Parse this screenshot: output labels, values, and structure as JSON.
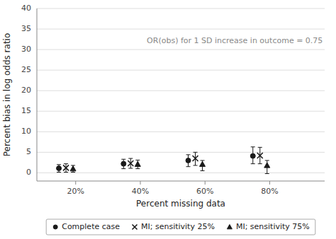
{
  "chart_data": {
    "type": "scatter",
    "xlabel": "Percent missing data",
    "ylabel": "Percent bias in log odds ratio",
    "annotations": [
      {
        "text": "OR(obs) for 1 SD increase in outcome = 0.75",
        "x": 0.42,
        "y": 32
      }
    ],
    "x": [
      0.17,
      0.37,
      0.57,
      0.77
    ],
    "color": "#1a1a1a",
    "series": [
      {
        "name": "Complete case",
        "marker": "circle",
        "values": [
          1.1,
          2.2,
          3.0,
          4.1
        ],
        "lo": [
          0.15,
          1.0,
          1.5,
          2.2
        ],
        "hi": [
          2.0,
          3.3,
          4.4,
          6.3
        ]
      },
      {
        "name": "MI; sensitivity 25%",
        "marker": "x",
        "values": [
          1.2,
          2.3,
          3.5,
          4.2
        ],
        "lo": [
          0.15,
          1.1,
          1.8,
          2.2
        ],
        "hi": [
          2.2,
          3.5,
          5.0,
          6.2
        ]
      },
      {
        "name": "MI; sensitivity 75%",
        "marker": "triangle",
        "values": [
          1.0,
          2.1,
          2.1,
          1.8
        ],
        "lo": [
          0.15,
          1.0,
          0.5,
          -0.2
        ],
        "hi": [
          1.8,
          3.1,
          3.0,
          3.0
        ]
      }
    ],
    "xlim": [
      0.08,
      0.97
    ],
    "ylim": [
      -2,
      40
    ],
    "xticks": [
      {
        "value": 0.2,
        "label": "20%"
      },
      {
        "value": 0.4,
        "label": "40%"
      },
      {
        "value": 0.6,
        "label": "60%"
      },
      {
        "value": 0.8,
        "label": "80%"
      }
    ],
    "yticks": [
      0,
      5,
      10,
      15,
      20,
      25,
      30,
      35,
      40
    ],
    "grid": true,
    "legend": "bottom"
  }
}
